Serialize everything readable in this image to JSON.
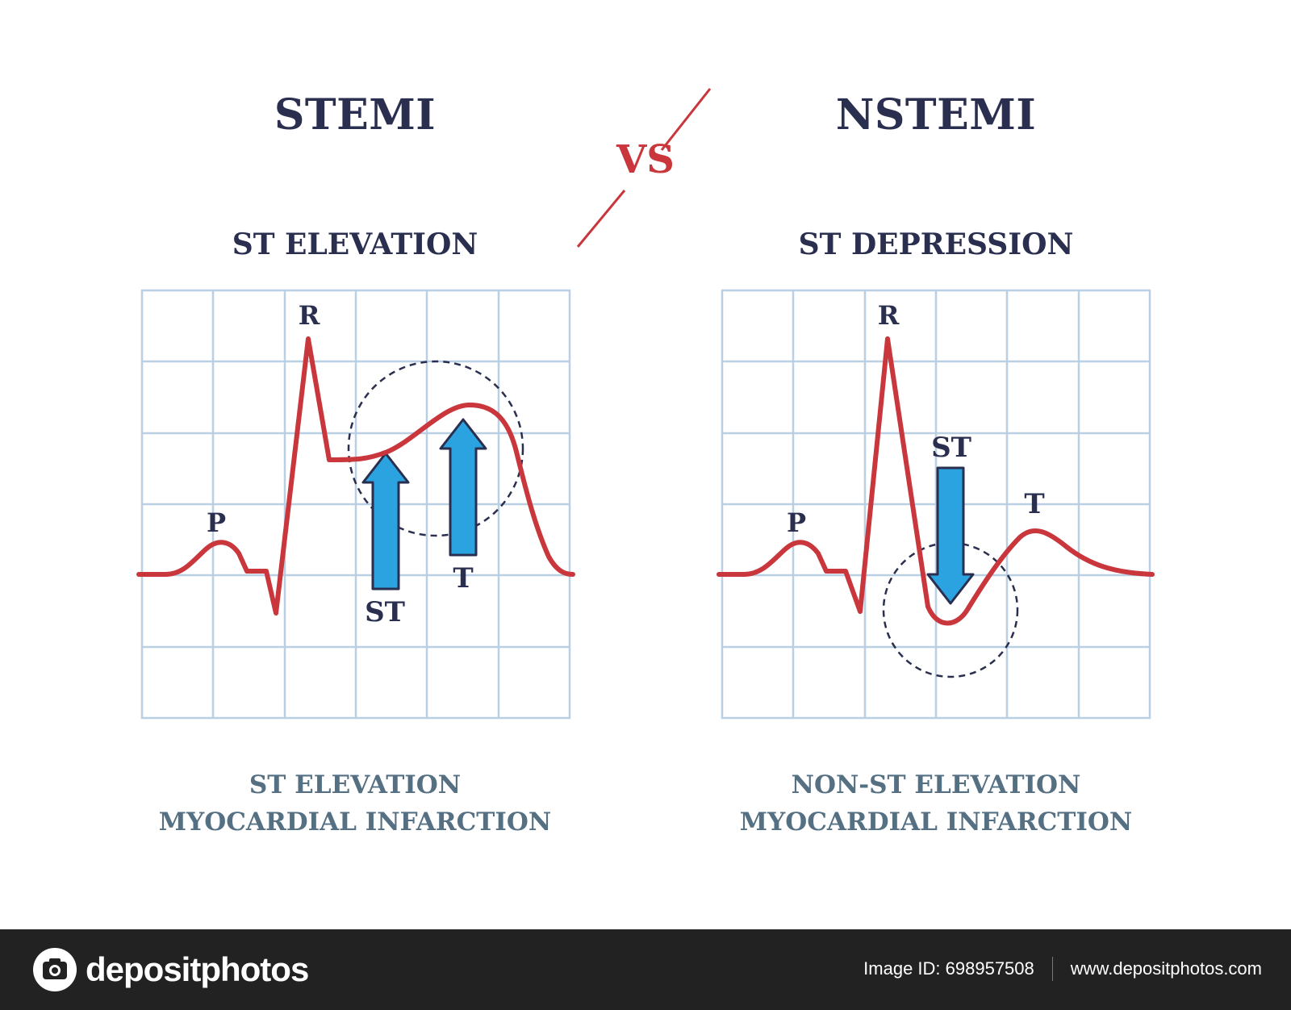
{
  "left_panel": {
    "title": "STEMI",
    "subtitle": "ST ELEVATION",
    "labels": {
      "p": "P",
      "r": "R",
      "st": "ST",
      "t": "T"
    },
    "caption_line1": "ST ELEVATION",
    "caption_line2": "MYOCARDIAL INFARCTION"
  },
  "right_panel": {
    "title": "NSTEMI",
    "subtitle": "ST DEPRESSION",
    "labels": {
      "p": "P",
      "r": "R",
      "st": "ST",
      "t": "T"
    },
    "caption_line1": "NON-ST ELEVATION",
    "caption_line2": "MYOCARDIAL INFARCTION"
  },
  "vs_label": "VS",
  "footer": {
    "brand": "depositphotos",
    "image_id": "Image ID: 698957508",
    "website": "www.depositphotos.com"
  },
  "colors": {
    "title": "#2a2f4f",
    "accent_red": "#c9363c",
    "grid": "#b9cfe4",
    "arrow_blue": "#2aa3e0",
    "caption": "#557083"
  }
}
